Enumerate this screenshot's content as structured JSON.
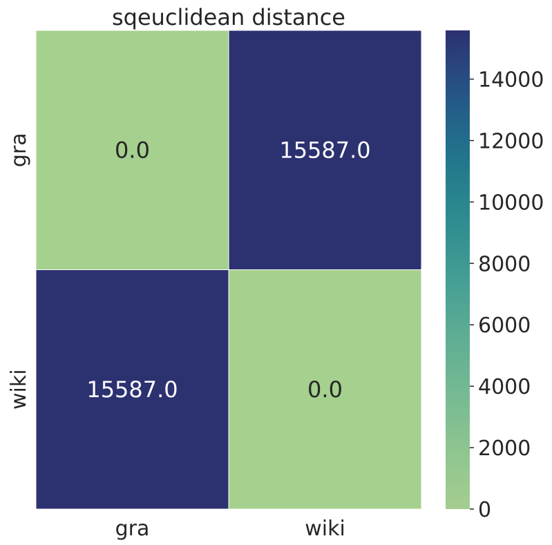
{
  "chart_data": {
    "type": "heatmap",
    "title": "sqeuclidean distance",
    "xlabel": "",
    "ylabel": "",
    "x_categories": [
      "gra",
      "wiki"
    ],
    "y_categories": [
      "gra",
      "wiki"
    ],
    "values": [
      [
        0.0,
        15587.0
      ],
      [
        15587.0,
        0.0
      ]
    ],
    "cell_labels": [
      [
        "0.0",
        "15587.0"
      ],
      [
        "15587.0",
        "0.0"
      ]
    ],
    "colorbar": {
      "range": [
        0,
        15587
      ],
      "ticks": [
        0,
        2000,
        4000,
        6000,
        8000,
        10000,
        12000,
        14000
      ],
      "tick_labels": [
        "0",
        "2000",
        "4000",
        "6000",
        "8000",
        "10000",
        "12000",
        "14000"
      ],
      "colormap": "crest",
      "low_color": "#a5d08e",
      "high_color": "#2c3170"
    },
    "grid": false
  }
}
